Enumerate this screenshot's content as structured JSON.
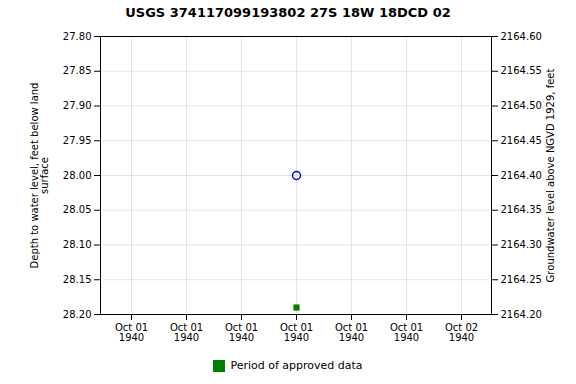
{
  "chart_data": {
    "type": "scatter",
    "title": "USGS 374117099193802 27S 18W 18DCD 02",
    "ylabel": "Depth to water level, feet below land\nsurface",
    "y2label": "Groundwater level above NGVD 1929, feet",
    "categories": [
      "Oct 01\n1940",
      "Oct 01\n1940",
      "Oct 01\n1940",
      "Oct 01\n1940",
      "Oct 01\n1940",
      "Oct 01\n1940",
      "Oct 02\n1940"
    ],
    "series": [
      {
        "color": "#0000cc",
        "marker": "circle",
        "values": [
          null,
          null,
          null,
          28.0,
          null,
          null,
          null
        ]
      },
      {
        "name": "Period of approved data",
        "color": "#008000",
        "marker": "square",
        "values": [
          null,
          null,
          null,
          28.19,
          null,
          null,
          null
        ]
      }
    ],
    "ylim": [
      28.2,
      27.8
    ],
    "yticks": [
      {
        "value": 27.8,
        "label": "27.80"
      },
      {
        "value": 27.85,
        "label": "27.85"
      },
      {
        "value": 27.9,
        "label": "27.90"
      },
      {
        "value": 27.95,
        "label": "27.95"
      },
      {
        "value": 28.0,
        "label": "28.00"
      },
      {
        "value": 28.05,
        "label": "28.05"
      },
      {
        "value": 28.1,
        "label": "28.10"
      },
      {
        "value": 28.15,
        "label": "28.15"
      },
      {
        "value": 28.2,
        "label": "28.20"
      }
    ],
    "y2lim": [
      2164.2,
      2164.6
    ],
    "y2ticks": [
      {
        "value": 2164.6,
        "label": "2164.60"
      },
      {
        "value": 2164.55,
        "label": "2164.55"
      },
      {
        "value": 2164.5,
        "label": "2164.50"
      },
      {
        "value": 2164.45,
        "label": "2164.45"
      },
      {
        "value": 2164.4,
        "label": "2164.40"
      },
      {
        "value": 2164.35,
        "label": "2164.35"
      },
      {
        "value": 2164.3,
        "label": "2164.30"
      },
      {
        "value": 2164.25,
        "label": "2164.25"
      },
      {
        "value": 2164.2,
        "label": "2164.20"
      }
    ],
    "grid": true,
    "legend": "bottom"
  }
}
